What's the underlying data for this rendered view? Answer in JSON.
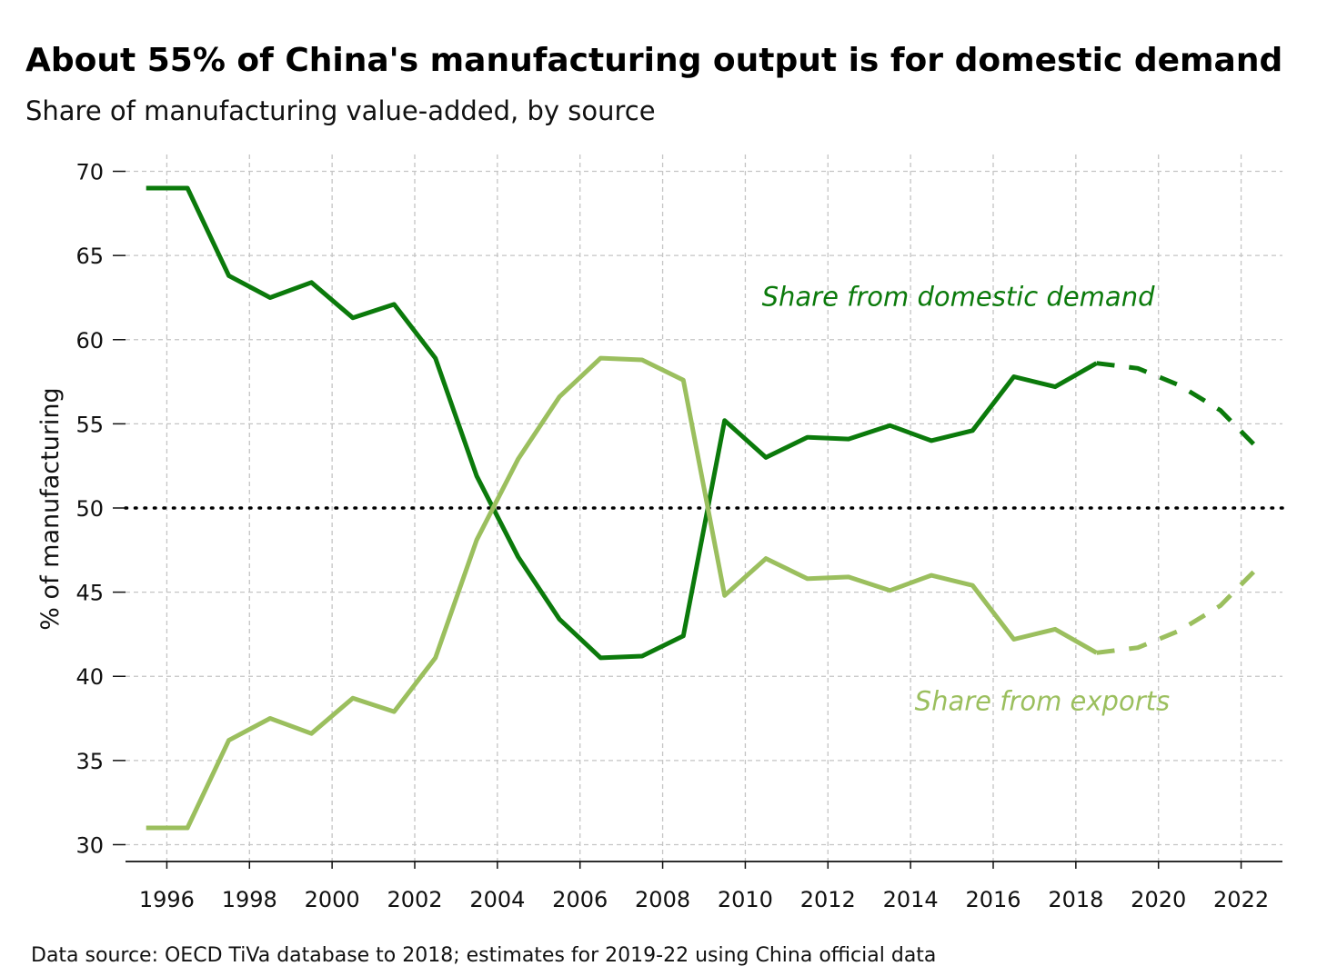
{
  "chart_data": {
    "type": "line",
    "title": "About 55% of China's manufacturing output is for domestic demand",
    "subtitle": "Share of manufacturing value-added, by source",
    "ylabel": "% of manufacturing",
    "source": "Data source: OECD TiVa database to 2018; estimates for 2019-22 using China official data",
    "xlim": [
      1995,
      2023
    ],
    "ylim": [
      29,
      71
    ],
    "x_ticks": [
      1996,
      1998,
      2000,
      2002,
      2004,
      2006,
      2008,
      2010,
      2012,
      2014,
      2016,
      2018,
      2020,
      2022
    ],
    "x_tick_labels": [
      "1996",
      "1998",
      "2000",
      "2002",
      "2004",
      "2006",
      "2008",
      "2010",
      "2012",
      "2014",
      "2016",
      "2018",
      "2020",
      "2022"
    ],
    "y_ticks": [
      30,
      35,
      40,
      45,
      50,
      55,
      60,
      65,
      70
    ],
    "y_tick_labels": [
      "30",
      "35",
      "40",
      "45",
      "50",
      "55",
      "60",
      "65",
      "70"
    ],
    "grid": true,
    "reference_line": {
      "y": 50,
      "style": "dotted",
      "color": "#000000"
    },
    "series": [
      {
        "annotation": "Share from domestic demand",
        "color": "#0b7a0b",
        "x": [
          1995.5,
          1996.5,
          1997.5,
          1998.5,
          1999.5,
          2000.5,
          2001.5,
          2002.5,
          2003.5,
          2004.5,
          2005.5,
          2006.5,
          2007.5,
          2008.5,
          2009.5,
          2010.5,
          2011.5,
          2012.5,
          2013.5,
          2014.5,
          2015.5,
          2016.5,
          2017.5,
          2018.5
        ],
        "values": [
          69,
          69,
          63.8,
          62.5,
          63.4,
          61.3,
          62.1,
          58.9,
          51.9,
          47.1,
          43.4,
          41.1,
          41.2,
          42.4,
          55.2,
          53,
          54.2,
          54.1,
          54.9,
          54,
          54.6,
          57.8,
          57.2,
          58.6
        ],
        "estimate_x": [
          2018.5,
          2019.5,
          2020.5,
          2021.5,
          2022.5
        ],
        "estimate_values": [
          58.6,
          58.3,
          57.3,
          55.8,
          53.3
        ]
      },
      {
        "annotation": "Share from exports",
        "color": "#9bbf5e",
        "x": [
          1995.5,
          1996.5,
          1997.5,
          1998.5,
          1999.5,
          2000.5,
          2001.5,
          2002.5,
          2003.5,
          2004.5,
          2005.5,
          2006.5,
          2007.5,
          2008.5,
          2009.5,
          2010.5,
          2011.5,
          2012.5,
          2013.5,
          2014.5,
          2015.5,
          2016.5,
          2017.5,
          2018.5
        ],
        "values": [
          31,
          31,
          36.2,
          37.5,
          36.6,
          38.7,
          37.9,
          41.1,
          48.1,
          52.9,
          56.6,
          58.9,
          58.8,
          57.6,
          44.8,
          47,
          45.8,
          45.9,
          45.1,
          46,
          45.4,
          42.2,
          42.8,
          41.4
        ],
        "estimate_x": [
          2018.5,
          2019.5,
          2020.5,
          2021.5,
          2022.5
        ],
        "estimate_values": [
          41.4,
          41.7,
          42.7,
          44.2,
          46.7
        ]
      }
    ],
    "annotations_position": [
      {
        "text_ref": 0,
        "x": 2010.4,
        "y": 62
      },
      {
        "text_ref": 1,
        "x": 2014.1,
        "y": 38
      }
    ]
  }
}
